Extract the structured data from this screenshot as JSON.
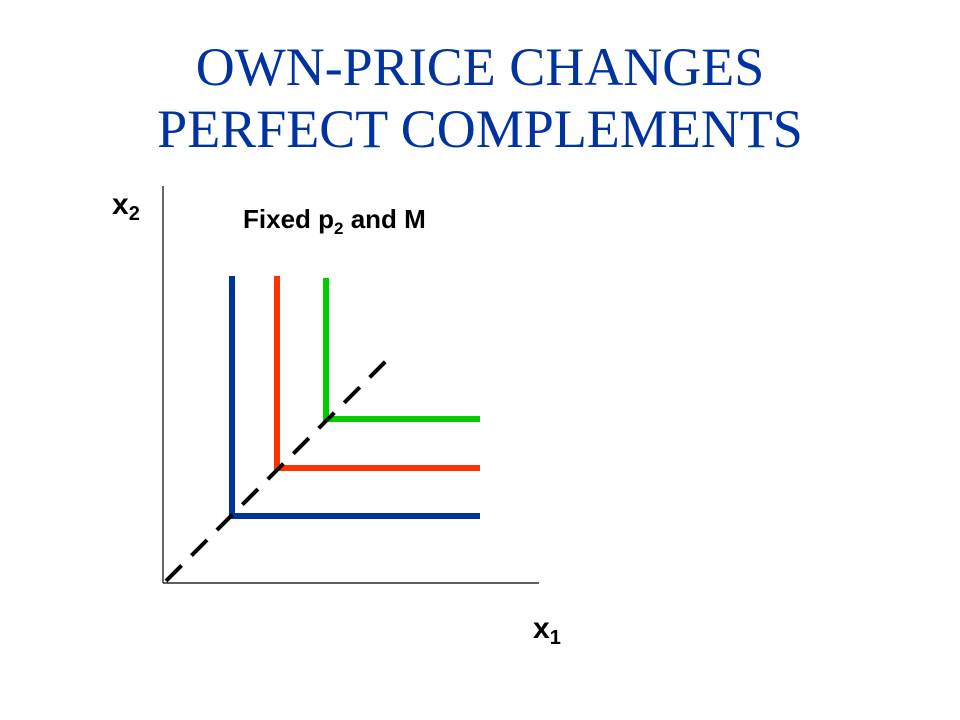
{
  "title": {
    "line1": "OWN-PRICE CHANGES",
    "line2": "PERFECT COMPLEMENTS"
  },
  "axes": {
    "y_label": {
      "base": "x",
      "sub": "2"
    },
    "x_label": {
      "base": "x",
      "sub": "1"
    }
  },
  "annotation": {
    "prefix": "Fixed p",
    "sub": "2",
    "suffix": " and M"
  },
  "colors": {
    "title": "#0033a0",
    "curve_low": "#003399",
    "curve_mid": "#ff3300",
    "curve_high": "#00cc00",
    "ray": "#000000",
    "axis": "#000000"
  }
}
